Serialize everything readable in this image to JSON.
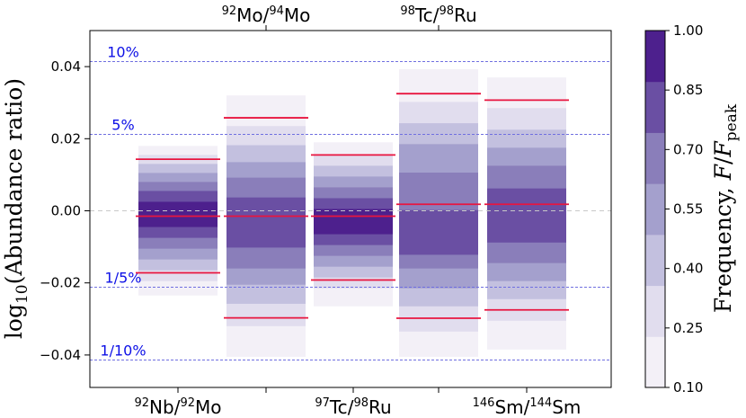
{
  "chart_data": {
    "type": "heatmap",
    "ylabel": "log10(Abundance ratio)",
    "ylabel_parts": {
      "base": "log",
      "sub": "10",
      "rest": "(Abundance ratio)"
    },
    "ylim": [
      -0.049,
      0.05
    ],
    "yticks": [
      {
        "value": 0.04,
        "label": "0.04"
      },
      {
        "value": 0.02,
        "label": "0.02"
      },
      {
        "value": 0.0,
        "label": "0.00"
      },
      {
        "value": -0.02,
        "label": "−0.02"
      },
      {
        "value": -0.04,
        "label": "−0.04"
      }
    ],
    "reference_lines": [
      {
        "value": 0.0414,
        "label": "10%"
      },
      {
        "value": 0.0212,
        "label": "5%"
      },
      {
        "value": -0.0212,
        "label": "1/5%"
      },
      {
        "value": -0.0414,
        "label": "1/10%"
      }
    ],
    "ratios": [
      {
        "label": "Nb/Mo",
        "label_rich": [
          [
            "92",
            "sup"
          ],
          [
            "Nb",
            ""
          ],
          [
            "/",
            ""
          ],
          [
            "92",
            "sup"
          ],
          [
            "Mo",
            ""
          ]
        ],
        "label_row": "bottom",
        "median": -0.0015,
        "lower": -0.0172,
        "upper": 0.0143,
        "levels": [
          [
            -0.0235,
            0.018
          ],
          [
            -0.0195,
            0.0155
          ],
          [
            -0.0165,
            0.013
          ],
          [
            -0.0135,
            0.0105
          ],
          [
            -0.0105,
            0.008
          ],
          [
            -0.0075,
            0.0055
          ],
          [
            -0.0045,
            0.0025
          ]
        ]
      },
      {
        "label": "Mo/Mo",
        "label_rich": [
          [
            "92",
            "sup"
          ],
          [
            "Mo",
            ""
          ],
          [
            "/",
            ""
          ],
          [
            "94",
            "sup"
          ],
          [
            "Mo",
            ""
          ]
        ],
        "label_row": "top",
        "median": -0.0015,
        "lower": -0.0297,
        "upper": 0.0258,
        "levels": [
          [
            -0.0405,
            0.032
          ],
          [
            -0.032,
            0.0235
          ],
          [
            -0.0258,
            0.0182
          ],
          [
            -0.0205,
            0.0135
          ],
          [
            -0.016,
            0.0092
          ],
          [
            -0.0102,
            0.0037
          ]
        ]
      },
      {
        "label": "Tc/Ru",
        "label_rich": [
          [
            "97",
            "sup"
          ],
          [
            "Tc",
            ""
          ],
          [
            "/",
            ""
          ],
          [
            "98",
            "sup"
          ],
          [
            "Ru",
            ""
          ]
        ],
        "label_row": "bottom",
        "median": -0.0015,
        "lower": -0.0192,
        "upper": 0.0155,
        "levels": [
          [
            -0.0265,
            0.019
          ],
          [
            -0.0215,
            0.0155
          ],
          [
            -0.0185,
            0.0125
          ],
          [
            -0.0155,
            0.0095
          ],
          [
            -0.0125,
            0.0065
          ],
          [
            -0.0095,
            0.0035
          ],
          [
            -0.0065,
            0.0005
          ]
        ]
      },
      {
        "label": "Tc/Ru",
        "label_rich": [
          [
            "98",
            "sup"
          ],
          [
            "Tc",
            ""
          ],
          [
            "/",
            ""
          ],
          [
            "98",
            "sup"
          ],
          [
            "Ru",
            ""
          ]
        ],
        "label_row": "top",
        "median": 0.0018,
        "lower": -0.0298,
        "upper": 0.0325,
        "levels": [
          [
            -0.0405,
            0.0393
          ],
          [
            -0.0335,
            0.0302
          ],
          [
            -0.0265,
            0.0243
          ],
          [
            -0.0215,
            0.0185
          ],
          [
            -0.016,
            0.0106
          ],
          [
            -0.0122,
            0.0002
          ]
        ]
      },
      {
        "label": "Sm/Sm",
        "label_rich": [
          [
            "146",
            "sup"
          ],
          [
            "Sm",
            ""
          ],
          [
            "/",
            ""
          ],
          [
            "144",
            "sup"
          ],
          [
            "Sm",
            ""
          ]
        ],
        "label_row": "bottom",
        "median": 0.0018,
        "lower": -0.0275,
        "upper": 0.0307,
        "levels": [
          [
            -0.0385,
            0.037
          ],
          [
            -0.0305,
            0.0285
          ],
          [
            -0.0245,
            0.0225
          ],
          [
            -0.0195,
            0.0175
          ],
          [
            -0.0145,
            0.0125
          ],
          [
            -0.0088,
            0.0062
          ]
        ]
      }
    ],
    "colorbar": {
      "label": "Frequency, F/F_peak",
      "label_parts": {
        "text": "Frequency, ",
        "var": "F",
        "slash": "/",
        "var2": "F",
        "sub": "peak"
      },
      "ticks": [
        "1.00",
        "0.85",
        "0.70",
        "0.55",
        "0.40",
        "0.25",
        "0.10"
      ],
      "colors": [
        "#f3f0f7",
        "#e1ddee",
        "#c3c0df",
        "#a4a0cd",
        "#8a7eba",
        "#6a4fa3",
        "#4d208d"
      ]
    },
    "colors": {
      "bound_line": "#e8153f",
      "reference_line": "#6f6fe0",
      "reference_label": "#0d10e6",
      "zero_line": "#c8c8c8"
    }
  }
}
